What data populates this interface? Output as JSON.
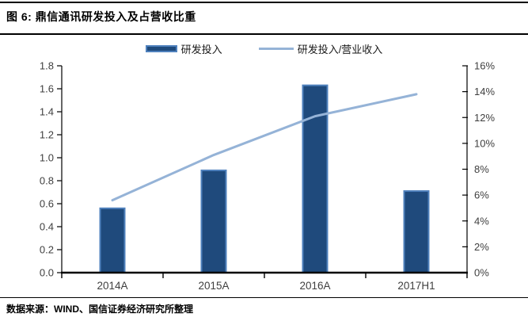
{
  "figure": {
    "title": "图 6: 鼎信通讯研发投入及占营收比重",
    "source": "数据来源：WIND、国信证券经济研究所整理"
  },
  "chart_data": {
    "type": "bar",
    "subtype": "bar+line combo, dual axis",
    "categories": [
      "2014A",
      "2015A",
      "2016A",
      "2017H1"
    ],
    "series": [
      {
        "name": "研发投入",
        "kind": "bar",
        "axis": "left",
        "values": [
          0.56,
          0.89,
          1.63,
          0.71
        ]
      },
      {
        "name": "研发投入/营业收入",
        "kind": "line",
        "axis": "right",
        "values_pct": [
          5.6,
          9.1,
          12.1,
          13.8
        ]
      }
    ],
    "left_axis": {
      "min": 0,
      "max": 1.8,
      "step": 0.2,
      "tick_labels": [
        "0.0",
        "0.2",
        "0.4",
        "0.6",
        "0.8",
        "1.0",
        "1.2",
        "1.4",
        "1.6",
        "1.8"
      ]
    },
    "right_axis": {
      "min": 0,
      "max": 16,
      "step": 2,
      "tick_labels": [
        "0%",
        "2%",
        "4%",
        "6%",
        "8%",
        "10%",
        "12%",
        "14%",
        "16%"
      ]
    },
    "legend_position": "top",
    "grid": false,
    "colors": {
      "bar_fill": "#1F4A7C",
      "bar_border": "#4F81BD",
      "line": "#95B3D7",
      "axis": "#000000",
      "tick_text": "#3F3F3F"
    }
  }
}
